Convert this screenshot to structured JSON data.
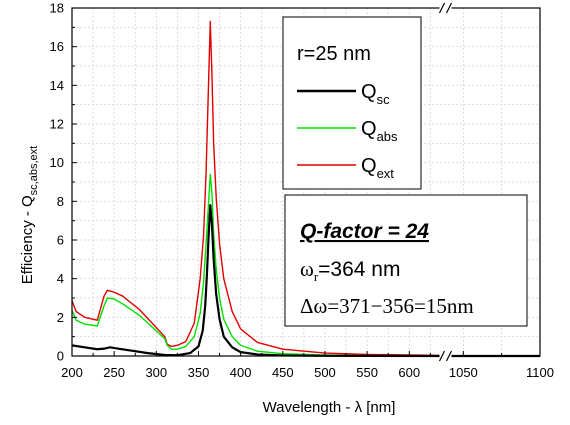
{
  "chart_data": {
    "type": "line",
    "xlabel": "Wavelength - λ [nm]",
    "ylabel_main": "Efficiency -  Q",
    "ylabel_sub": "sc,abs,ext",
    "x_ticks": [
      "200",
      "250",
      "300",
      "350",
      "400",
      "450",
      "500",
      "550",
      "600",
      "1050",
      "1100"
    ],
    "y_ticks": [
      "0",
      "2",
      "4",
      "6",
      "8",
      "10",
      "12",
      "14",
      "16",
      "18"
    ],
    "xlim_segments": [
      [
        200,
        640
      ],
      [
        1040,
        1100
      ]
    ],
    "ylim": [
      0,
      18
    ],
    "grid": true,
    "legend_placement": "top-right",
    "legend_title": "r=25 nm",
    "info_box": {
      "title": "Q-factor = 24",
      "line1_symbol": "ω",
      "line1_sub": "r",
      "line1_text": "=364 nm",
      "line2": "Δω=371−356=15nm"
    },
    "series": [
      {
        "name_main": "Q",
        "name_sub": "sc",
        "color": "#000000",
        "points": [
          [
            200,
            0.55
          ],
          [
            215,
            0.45
          ],
          [
            230,
            0.35
          ],
          [
            238,
            0.38
          ],
          [
            245,
            0.45
          ],
          [
            255,
            0.38
          ],
          [
            270,
            0.28
          ],
          [
            290,
            0.15
          ],
          [
            310,
            0.05
          ],
          [
            325,
            0.04
          ],
          [
            340,
            0.15
          ],
          [
            350,
            0.5
          ],
          [
            355,
            1.3
          ],
          [
            358,
            2.6
          ],
          [
            360,
            4.2
          ],
          [
            362,
            6.2
          ],
          [
            364,
            7.8
          ],
          [
            366,
            6.8
          ],
          [
            368,
            5.0
          ],
          [
            371,
            3.2
          ],
          [
            375,
            1.9
          ],
          [
            380,
            1.0
          ],
          [
            390,
            0.45
          ],
          [
            400,
            0.2
          ],
          [
            420,
            0.08
          ],
          [
            450,
            0.03
          ],
          [
            500,
            0.01
          ],
          [
            640,
            0.0
          ],
          [
            1040,
            0.0
          ],
          [
            1100,
            0.0
          ]
        ]
      },
      {
        "name_main": "Q",
        "name_sub": "abs",
        "color": "#00e000",
        "points": [
          [
            200,
            2.35
          ],
          [
            205,
            1.85
          ],
          [
            215,
            1.65
          ],
          [
            230,
            1.55
          ],
          [
            238,
            2.6
          ],
          [
            242,
            3.0
          ],
          [
            250,
            2.95
          ],
          [
            260,
            2.7
          ],
          [
            280,
            2.1
          ],
          [
            295,
            1.5
          ],
          [
            310,
            0.9
          ],
          [
            313,
            0.55
          ],
          [
            318,
            0.35
          ],
          [
            325,
            0.35
          ],
          [
            335,
            0.5
          ],
          [
            345,
            1.0
          ],
          [
            352,
            2.2
          ],
          [
            356,
            3.8
          ],
          [
            360,
            6.5
          ],
          [
            363,
            8.7
          ],
          [
            364,
            9.4
          ],
          [
            366,
            8.4
          ],
          [
            368,
            6.3
          ],
          [
            371,
            4.5
          ],
          [
            375,
            3.0
          ],
          [
            380,
            1.9
          ],
          [
            390,
            1.0
          ],
          [
            400,
            0.55
          ],
          [
            420,
            0.25
          ],
          [
            450,
            0.12
          ],
          [
            500,
            0.05
          ],
          [
            550,
            0.02
          ],
          [
            640,
            0.01
          ],
          [
            1040,
            0.0
          ],
          [
            1100,
            0.0
          ]
        ]
      },
      {
        "name_main": "Q",
        "name_sub": "ext",
        "color": "#e00000",
        "points": [
          [
            200,
            2.85
          ],
          [
            205,
            2.3
          ],
          [
            215,
            2.0
          ],
          [
            230,
            1.85
          ],
          [
            238,
            3.1
          ],
          [
            242,
            3.4
          ],
          [
            250,
            3.3
          ],
          [
            260,
            3.1
          ],
          [
            280,
            2.4
          ],
          [
            295,
            1.7
          ],
          [
            310,
            1.0
          ],
          [
            313,
            0.6
          ],
          [
            318,
            0.5
          ],
          [
            325,
            0.55
          ],
          [
            335,
            0.75
          ],
          [
            345,
            1.7
          ],
          [
            352,
            4.0
          ],
          [
            356,
            6.2
          ],
          [
            359,
            9.5
          ],
          [
            362,
            14.2
          ],
          [
            364,
            17.3
          ],
          [
            366,
            14.5
          ],
          [
            368,
            11.0
          ],
          [
            371,
            8.2
          ],
          [
            375,
            5.8
          ],
          [
            380,
            4.0
          ],
          [
            390,
            2.3
          ],
          [
            400,
            1.4
          ],
          [
            420,
            0.7
          ],
          [
            450,
            0.35
          ],
          [
            500,
            0.15
          ],
          [
            550,
            0.08
          ],
          [
            640,
            0.03
          ],
          [
            1040,
            0.0
          ],
          [
            1100,
            0.0
          ]
        ]
      }
    ]
  }
}
